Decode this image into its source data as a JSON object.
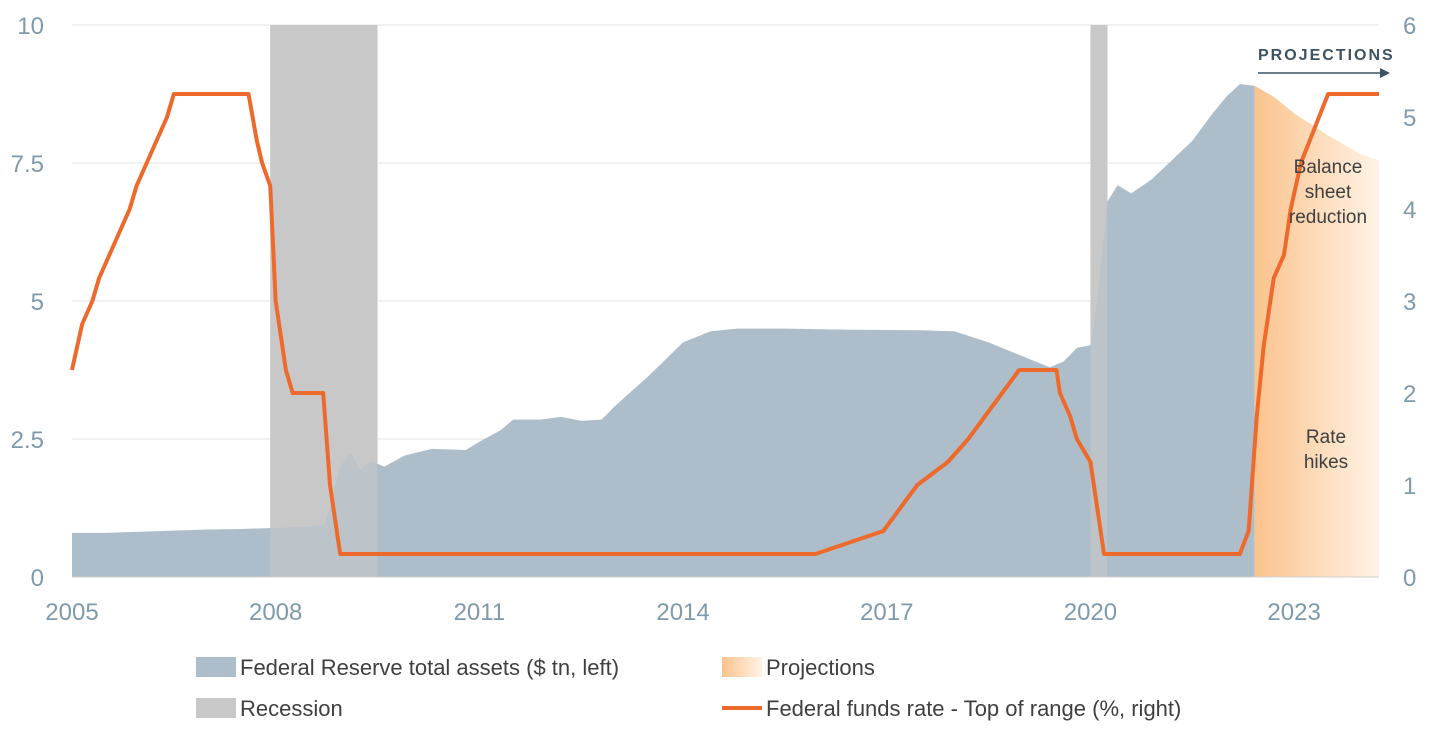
{
  "chart_data": {
    "type": "area",
    "title": "",
    "x_range": [
      2005.0,
      2024.25
    ],
    "x_ticks": [
      "2005",
      "2008",
      "2011",
      "2014",
      "2017",
      "2020",
      "2023"
    ],
    "y_left": {
      "range": [
        0,
        10
      ],
      "ticks": [
        "0",
        "2.5",
        "5",
        "7.5",
        "10"
      ]
    },
    "y_right": {
      "range": [
        0,
        6
      ],
      "ticks": [
        "0",
        "1",
        "2",
        "3",
        "4",
        "5",
        "6"
      ]
    },
    "grid": true,
    "legend_position": "bottom",
    "legend": {
      "assets": "Federal Reserve total assets ($ tn, left)",
      "projections": "Projections",
      "recession": "Recession",
      "rate": "Federal funds rate - Top of range (%, right)"
    },
    "annotations": {
      "projections_header": "PROJECTIONS",
      "balance_sheet": [
        "Balance",
        "sheet",
        "reduction"
      ],
      "rate_hikes": [
        "Rate",
        "hikes"
      ]
    },
    "colors": {
      "assets": "#adbdc9",
      "recession": "#c8c8c8",
      "rate": "#ee6a2c",
      "projection_start": "#fbc38e",
      "projection_end": "#fff3e6",
      "tick_text": "#7f9aab"
    },
    "recessions": [
      [
        2007.92,
        2009.5
      ],
      [
        2020.0,
        2020.25
      ]
    ],
    "projection_start": 2022.42,
    "series": [
      {
        "name": "Federal Reserve total assets ($ tn, left)",
        "axis": "left",
        "points": [
          [
            2005.0,
            0.8
          ],
          [
            2005.5,
            0.8
          ],
          [
            2006.0,
            0.82
          ],
          [
            2006.5,
            0.84
          ],
          [
            2007.0,
            0.86
          ],
          [
            2007.5,
            0.87
          ],
          [
            2008.0,
            0.89
          ],
          [
            2008.5,
            0.91
          ],
          [
            2008.72,
            0.95
          ],
          [
            2008.85,
            1.5
          ],
          [
            2008.95,
            2.0
          ],
          [
            2009.1,
            2.25
          ],
          [
            2009.25,
            1.95
          ],
          [
            2009.4,
            2.1
          ],
          [
            2009.6,
            2.0
          ],
          [
            2009.9,
            2.2
          ],
          [
            2010.3,
            2.32
          ],
          [
            2010.8,
            2.3
          ],
          [
            2011.0,
            2.45
          ],
          [
            2011.3,
            2.65
          ],
          [
            2011.5,
            2.85
          ],
          [
            2011.9,
            2.85
          ],
          [
            2012.2,
            2.9
          ],
          [
            2012.5,
            2.83
          ],
          [
            2012.8,
            2.85
          ],
          [
            2013.0,
            3.1
          ],
          [
            2013.5,
            3.65
          ],
          [
            2014.0,
            4.25
          ],
          [
            2014.4,
            4.45
          ],
          [
            2014.8,
            4.5
          ],
          [
            2015.5,
            4.5
          ],
          [
            2016.5,
            4.48
          ],
          [
            2017.5,
            4.47
          ],
          [
            2018.0,
            4.45
          ],
          [
            2018.5,
            4.25
          ],
          [
            2019.0,
            4.0
          ],
          [
            2019.4,
            3.8
          ],
          [
            2019.6,
            3.9
          ],
          [
            2019.8,
            4.15
          ],
          [
            2020.0,
            4.2
          ],
          [
            2020.1,
            5.0
          ],
          [
            2020.25,
            6.8
          ],
          [
            2020.4,
            7.1
          ],
          [
            2020.6,
            6.95
          ],
          [
            2020.9,
            7.2
          ],
          [
            2021.2,
            7.55
          ],
          [
            2021.5,
            7.9
          ],
          [
            2021.8,
            8.4
          ],
          [
            2022.0,
            8.7
          ],
          [
            2022.2,
            8.93
          ],
          [
            2022.42,
            8.9
          ]
        ]
      },
      {
        "name": "Projections",
        "axis": "left",
        "points": [
          [
            2022.42,
            8.9
          ],
          [
            2022.7,
            8.7
          ],
          [
            2023.0,
            8.4
          ],
          [
            2023.5,
            8.0
          ],
          [
            2024.0,
            7.65
          ],
          [
            2024.25,
            7.55
          ]
        ]
      },
      {
        "name": "Federal funds rate - Top of range (%, right)",
        "axis": "right",
        "points": [
          [
            2005.0,
            2.25
          ],
          [
            2005.15,
            2.75
          ],
          [
            2005.3,
            3.0
          ],
          [
            2005.4,
            3.25
          ],
          [
            2005.55,
            3.5
          ],
          [
            2005.7,
            3.75
          ],
          [
            2005.85,
            4.0
          ],
          [
            2005.95,
            4.25
          ],
          [
            2006.1,
            4.5
          ],
          [
            2006.25,
            4.75
          ],
          [
            2006.4,
            5.0
          ],
          [
            2006.5,
            5.25
          ],
          [
            2007.6,
            5.25
          ],
          [
            2007.72,
            4.75
          ],
          [
            2007.8,
            4.5
          ],
          [
            2007.92,
            4.25
          ],
          [
            2008.0,
            3.0
          ],
          [
            2008.15,
            2.25
          ],
          [
            2008.25,
            2.0
          ],
          [
            2008.7,
            2.0
          ],
          [
            2008.8,
            1.0
          ],
          [
            2008.95,
            0.25
          ],
          [
            2015.95,
            0.25
          ],
          [
            2016.95,
            0.5
          ],
          [
            2017.2,
            0.75
          ],
          [
            2017.45,
            1.0
          ],
          [
            2017.9,
            1.25
          ],
          [
            2018.2,
            1.5
          ],
          [
            2018.45,
            1.75
          ],
          [
            2018.7,
            2.0
          ],
          [
            2018.95,
            2.25
          ],
          [
            2019.5,
            2.25
          ],
          [
            2019.55,
            2.0
          ],
          [
            2019.7,
            1.75
          ],
          [
            2019.8,
            1.5
          ],
          [
            2020.0,
            1.25
          ],
          [
            2020.2,
            0.25
          ],
          [
            2022.2,
            0.25
          ],
          [
            2022.33,
            0.5
          ],
          [
            2022.45,
            1.75
          ],
          [
            2022.55,
            2.5
          ],
          [
            2022.7,
            3.25
          ],
          [
            2022.85,
            3.5
          ],
          [
            2022.95,
            4.0
          ],
          [
            2023.1,
            4.5
          ],
          [
            2023.5,
            5.25
          ],
          [
            2024.25,
            5.25
          ]
        ]
      }
    ]
  }
}
